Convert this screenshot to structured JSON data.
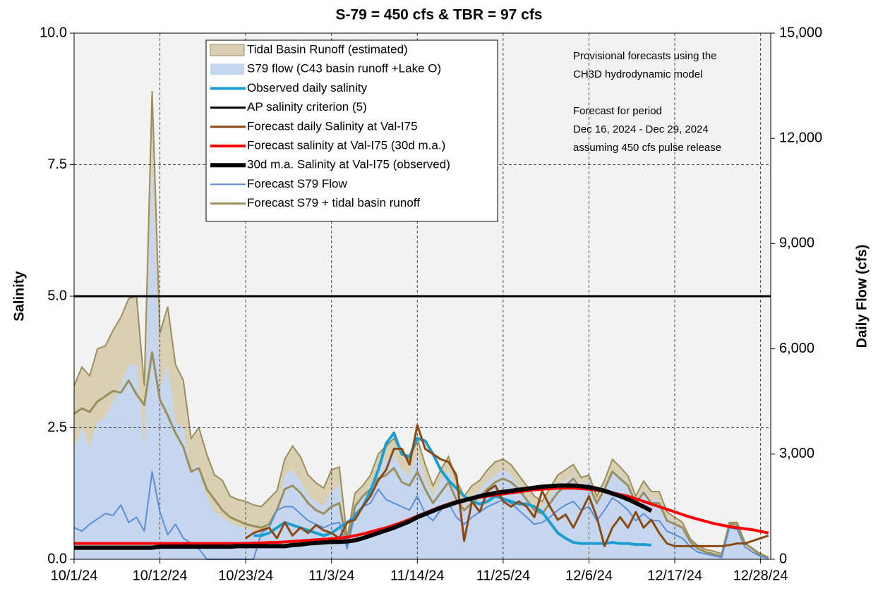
{
  "chart_data": {
    "type": "line",
    "title": "S-79 = 450 cfs & TBR =  97 cfs",
    "ylabel": "Salinity",
    "y2label": "Daily Flow (cfs)",
    "annotations": [
      "Provisional forecasts using the",
      "CH3D hydrodynamic model",
      "Forecast for period",
      "Dec 16, 2024 - Dec 29, 2024",
      "assuming 450 cfs pulse release"
    ],
    "grid": true,
    "legend": "top",
    "ylim": [
      0,
      10
    ],
    "yticks": [
      {
        "value": 0,
        "label": "0.0"
      },
      {
        "value": 2.5,
        "label": "2.5"
      },
      {
        "value": 5,
        "label": "5.0"
      },
      {
        "value": 7.5,
        "label": "7.5"
      },
      {
        "value": 10,
        "label": "10.0"
      }
    ],
    "y2lim": [
      0,
      15000
    ],
    "y2ticks": [
      0,
      {
        "value": 3000,
        "label": "3,000"
      },
      {
        "value": 6000,
        "label": "6,000"
      },
      {
        "value": 9000,
        "label": "9,000"
      },
      {
        "value": 12000,
        "label": "12,000"
      },
      {
        "value": 15000,
        "label": "15,000"
      }
    ],
    "xticks": [
      "10/1/24",
      "10/12/24",
      "10/23/24",
      "11/3/24",
      "11/14/24",
      "11/25/24",
      "12/6/24",
      "12/17/24",
      "12/28/24"
    ],
    "x": [
      "10/1/24",
      "10/2/24",
      "10/3/24",
      "10/4/24",
      "10/5/24",
      "10/6/24",
      "10/7/24",
      "10/8/24",
      "10/9/24",
      "10/10/24",
      "10/11/24",
      "10/12/24",
      "10/13/24",
      "10/14/24",
      "10/15/24",
      "10/16/24",
      "10/17/24",
      "10/18/24",
      "10/19/24",
      "10/20/24",
      "10/21/24",
      "10/22/24",
      "10/23/24",
      "10/24/24",
      "10/25/24",
      "10/26/24",
      "10/27/24",
      "10/28/24",
      "10/29/24",
      "10/30/24",
      "10/31/24",
      "11/1/24",
      "11/2/24",
      "11/3/24",
      "11/4/24",
      "11/5/24",
      "11/6/24",
      "11/7/24",
      "11/8/24",
      "11/9/24",
      "11/10/24",
      "11/11/24",
      "11/12/24",
      "11/13/24",
      "11/14/24",
      "11/15/24",
      "11/16/24",
      "11/17/24",
      "11/18/24",
      "11/19/24",
      "11/20/24",
      "11/21/24",
      "11/22/24",
      "11/23/24",
      "11/24/24",
      "11/25/24",
      "11/26/24",
      "11/27/24",
      "11/28/24",
      "11/29/24",
      "11/30/24",
      "12/1/24",
      "12/2/24",
      "12/3/24",
      "12/4/24",
      "12/5/24",
      "12/6/24",
      "12/7/24",
      "12/8/24",
      "12/9/24",
      "12/10/24",
      "12/11/24",
      "12/12/24",
      "12/13/24",
      "12/14/24",
      "12/15/24",
      "12/16/24",
      "12/17/24",
      "12/18/24",
      "12/19/24",
      "12/20/24",
      "12/21/24",
      "12/22/24",
      "12/23/24",
      "12/24/24",
      "12/25/24",
      "12/26/24",
      "12/27/24",
      "12/28/24",
      "12/29/24"
    ],
    "series": [
      {
        "name": "Tidal Basin Runoff (estimated)",
        "style": "area",
        "stack": "flow",
        "axis": "y2",
        "color": "#d9cfb2",
        "edge_color": "#9a8d5e",
        "values": [
          1800,
          1730,
          2030,
          2100,
          2030,
          2030,
          1950,
          1880,
          1950,
          1800,
          1800,
          1650,
          1650,
          1650,
          1350,
          900,
          1050,
          1200,
          1050,
          1050,
          750,
          750,
          750,
          750,
          750,
          830,
          600,
          450,
          680,
          680,
          600,
          530,
          530,
          600,
          530,
          150,
          380,
          300,
          300,
          450,
          380,
          450,
          450,
          450,
          450,
          450,
          300,
          300,
          380,
          300,
          300,
          300,
          300,
          300,
          380,
          300,
          300,
          300,
          300,
          300,
          150,
          230,
          300,
          300,
          300,
          230,
          150,
          150,
          150,
          300,
          230,
          230,
          150,
          230,
          230,
          230,
          150,
          150,
          150,
          80,
          80,
          80,
          80,
          80,
          150,
          150,
          80,
          80,
          80,
          30
        ]
      },
      {
        "name": "S79 flow (C43 basin runoff +Lake O)",
        "style": "area",
        "stack": "flow",
        "axis": "y2",
        "color": "#c6d6ee",
        "values": [
          3150,
          3750,
          3200,
          3900,
          4050,
          4500,
          4950,
          5550,
          5550,
          3150,
          11550,
          4800,
          5550,
          3900,
          3750,
          2550,
          2700,
          1800,
          1350,
          1200,
          1050,
          950,
          900,
          800,
          750,
          900,
          1350,
          2400,
          2550,
          2250,
          1800,
          1650,
          1500,
          1950,
          2100,
          450,
          1500,
          1800,
          2100,
          2550,
          2850,
          3000,
          2550,
          2400,
          3000,
          2250,
          1800,
          2250,
          2550,
          1950,
          1500,
          1800,
          1950,
          2250,
          2400,
          2550,
          2400,
          2100,
          1800,
          1500,
          1500,
          1800,
          2100,
          2250,
          2400,
          2100,
          2250,
          1650,
          2100,
          2550,
          2400,
          2150,
          1650,
          2000,
          1700,
          1700,
          1200,
          1050,
          900,
          500,
          300,
          200,
          150,
          80,
          900,
          900,
          380,
          220,
          80,
          30
        ]
      },
      {
        "name": "Observed daily salinity",
        "style": "line",
        "color": "#1a9fd0",
        "line_width": 4,
        "values": [
          null,
          null,
          null,
          null,
          null,
          null,
          null,
          null,
          null,
          null,
          null,
          null,
          null,
          null,
          null,
          null,
          null,
          null,
          null,
          null,
          null,
          null,
          null,
          0.45,
          0.45,
          0.5,
          0.6,
          0.7,
          0.65,
          0.6,
          0.55,
          0.5,
          0.45,
          0.5,
          0.6,
          0.7,
          0.8,
          1.0,
          1.3,
          1.7,
          2.2,
          2.4,
          2.0,
          1.95,
          2.3,
          2.25,
          2.0,
          1.7,
          1.5,
          1.35,
          1.2,
          1.1,
          1.05,
          1.1,
          1.2,
          1.15,
          1.1,
          1.05,
          1.05,
          1.0,
          0.9,
          0.7,
          0.5,
          0.4,
          0.32,
          0.3,
          0.3,
          0.3,
          0.3,
          0.32,
          0.3,
          0.3,
          0.28,
          0.28,
          0.27,
          null,
          null,
          null,
          null,
          null,
          null,
          null,
          null,
          null,
          null,
          null,
          null,
          null,
          null,
          null
        ]
      },
      {
        "name": "AP salinity criterion (5)",
        "style": "hline",
        "color": "#000000",
        "line_width": 3,
        "value": 5
      },
      {
        "name": "Forecast daily Salinity at Val-I75",
        "style": "line",
        "color": "#8b4a14",
        "line_width": 3,
        "values": [
          null,
          null,
          null,
          null,
          null,
          null,
          null,
          null,
          null,
          null,
          null,
          null,
          null,
          null,
          null,
          null,
          null,
          null,
          null,
          null,
          null,
          null,
          0.4,
          0.5,
          0.55,
          0.6,
          0.4,
          0.7,
          0.45,
          0.6,
          0.5,
          0.65,
          0.55,
          0.5,
          0.4,
          0.7,
          0.75,
          1.0,
          1.2,
          1.5,
          1.7,
          2.1,
          2.1,
          1.8,
          2.55,
          2.1,
          2.0,
          1.9,
          1.85,
          1.6,
          0.35,
          1.1,
          0.9,
          1.3,
          1.4,
          1.1,
          1.0,
          1.1,
          1.0,
          0.8,
          1.3,
          1.0,
          0.75,
          0.85,
          0.6,
          0.9,
          1.2,
          0.8,
          0.25,
          0.6,
          0.8,
          0.6,
          0.9,
          0.6,
          0.75,
          0.5,
          0.3,
          0.25,
          0.25,
          0.25,
          0.25,
          0.25,
          0.25,
          0.25,
          0.27,
          0.3,
          0.3,
          0.35,
          0.4,
          0.45
        ]
      },
      {
        "name": "Forecast salinity at Val-I75 (30d m.a.)",
        "style": "line",
        "color": "#ff0000",
        "line_width": 4,
        "values": [
          0.3,
          0.3,
          0.3,
          0.3,
          0.3,
          0.3,
          0.3,
          0.3,
          0.3,
          0.3,
          0.3,
          0.3,
          0.3,
          0.3,
          0.3,
          0.3,
          0.3,
          0.3,
          0.3,
          0.3,
          0.3,
          0.3,
          0.3,
          0.31,
          0.31,
          0.32,
          0.32,
          0.33,
          0.34,
          0.35,
          0.36,
          0.37,
          0.38,
          0.39,
          0.4,
          0.42,
          0.45,
          0.48,
          0.52,
          0.56,
          0.6,
          0.65,
          0.7,
          0.76,
          0.82,
          0.88,
          0.94,
          1.0,
          1.05,
          1.1,
          1.13,
          1.16,
          1.18,
          1.2,
          1.22,
          1.24,
          1.26,
          1.28,
          1.3,
          1.32,
          1.33,
          1.34,
          1.35,
          1.35,
          1.35,
          1.34,
          1.33,
          1.31,
          1.29,
          1.26,
          1.23,
          1.2,
          1.15,
          1.1,
          1.05,
          1.0,
          0.95,
          0.9,
          0.85,
          0.8,
          0.76,
          0.72,
          0.68,
          0.65,
          0.62,
          0.6,
          0.58,
          0.56,
          0.53,
          0.5
        ]
      },
      {
        "name": "30d m.a. Salinity at Val-I75 (observed)",
        "style": "line",
        "color": "#000000",
        "line_width": 6,
        "values": [
          0.22,
          0.22,
          0.22,
          0.22,
          0.22,
          0.22,
          0.22,
          0.22,
          0.22,
          0.22,
          0.22,
          0.24,
          0.24,
          0.24,
          0.24,
          0.24,
          0.24,
          0.24,
          0.24,
          0.24,
          0.24,
          0.25,
          0.25,
          0.25,
          0.25,
          0.25,
          0.25,
          0.25,
          0.27,
          0.28,
          0.3,
          0.31,
          0.32,
          0.33,
          0.33,
          0.34,
          0.36,
          0.4,
          0.45,
          0.5,
          0.55,
          0.6,
          0.66,
          0.72,
          0.8,
          0.86,
          0.92,
          0.98,
          1.03,
          1.08,
          1.12,
          1.16,
          1.2,
          1.23,
          1.26,
          1.28,
          1.3,
          1.32,
          1.34,
          1.36,
          1.38,
          1.39,
          1.4,
          1.4,
          1.4,
          1.39,
          1.37,
          1.34,
          1.3,
          1.25,
          1.2,
          1.14,
          1.07,
          1.0,
          0.92,
          null,
          null,
          null,
          null,
          null,
          null,
          null,
          null,
          null,
          null,
          null,
          null,
          null,
          null,
          null
        ]
      },
      {
        "name": "Forecast S79 Flow",
        "style": "line",
        "axis": "y2",
        "color": "#5b8ed6",
        "line_width": 2,
        "values": [
          900,
          800,
          1000,
          1150,
          1300,
          1250,
          1550,
          1050,
          1200,
          800,
          2500,
          1350,
          700,
          1000,
          600,
          450,
          300,
          0,
          0,
          0,
          0,
          0,
          0,
          0,
          750,
          900,
          1400,
          1500,
          1500,
          1300,
          1100,
          1000,
          900,
          1000,
          1050,
          300,
          1300,
          1500,
          1600,
          2000,
          1700,
          1600,
          1500,
          1400,
          1800,
          1300,
          1100,
          1400,
          1600,
          1200,
          1000,
          1200,
          1350,
          1500,
          1600,
          1700,
          1600,
          1400,
          1200,
          1000,
          1050,
          1200,
          1400,
          1550,
          1650,
          1400,
          1500,
          1100,
          1400,
          1750,
          1600,
          1400,
          1100,
          1300,
          1100,
          1100,
          800,
          700,
          600,
          350,
          200,
          150,
          100,
          50,
          900,
          850,
          350,
          200,
          80,
          30
        ]
      },
      {
        "name": "Forecast S79 + tidal basin runoff",
        "style": "line",
        "axis": "y2",
        "color": "#9a8f5d",
        "line_width": 3,
        "values": [
          4150,
          4300,
          4200,
          4500,
          4650,
          4800,
          4750,
          5100,
          4700,
          4400,
          5900,
          4550,
          4100,
          3600,
          3200,
          2500,
          2600,
          2000,
          1700,
          1400,
          1200,
          1100,
          1000,
          950,
          900,
          1000,
          1400,
          2000,
          2100,
          1900,
          1600,
          1400,
          1300,
          1500,
          1600,
          400,
          1500,
          1800,
          2000,
          2300,
          2400,
          2600,
          2200,
          2100,
          2500,
          2000,
          1600,
          1900,
          2200,
          1700,
          1400,
          1600,
          1800,
          2000,
          2200,
          2300,
          2200,
          2000,
          1700,
          1400,
          1300,
          1600,
          1900,
          2100,
          2300,
          2000,
          2100,
          1600,
          2000,
          2500,
          2300,
          2100,
          1600,
          1900,
          1600,
          1600,
          1100,
          1000,
          900,
          500,
          300,
          200,
          150,
          80,
          1000,
          1000,
          450,
          300,
          100,
          40
        ]
      }
    ]
  }
}
